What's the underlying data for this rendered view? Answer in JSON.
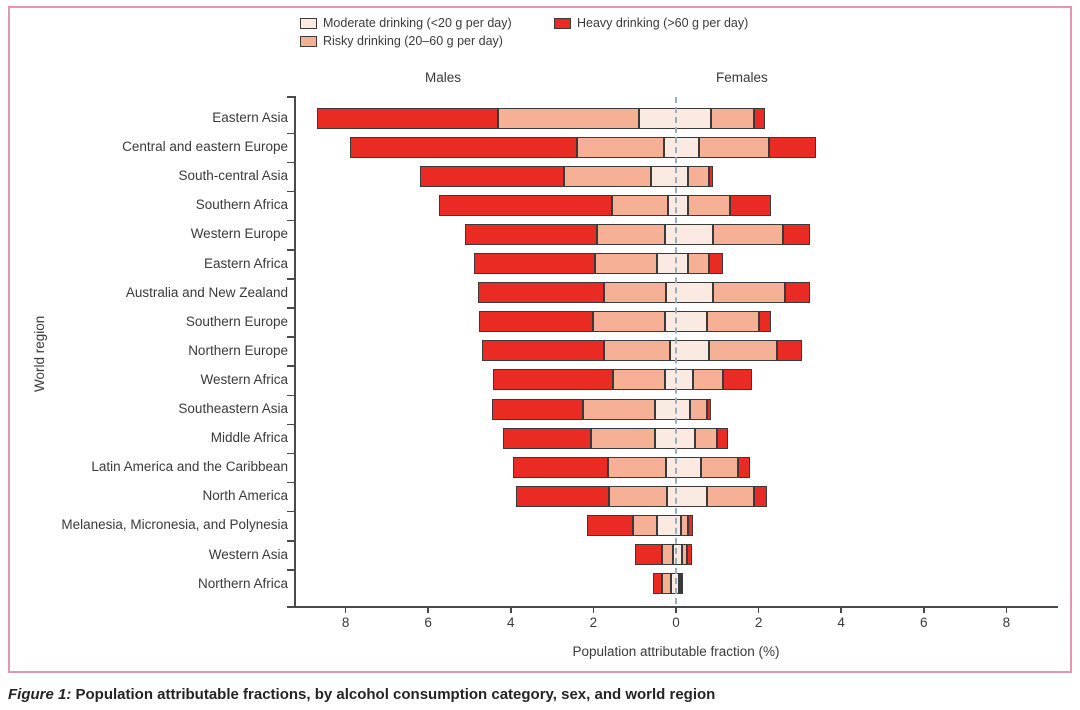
{
  "figure": {
    "caption_label": "Figure 1:",
    "caption_text": "Population attributable fractions, by alcohol consumption category, sex, and world region"
  },
  "chart_data": {
    "type": "bar",
    "variant": "diverging-stacked-horizontal",
    "title": "",
    "xlabel": "Population attributable fraction (%)",
    "ylabel": "World region",
    "side_labels": {
      "left": "Males",
      "right": "Females"
    },
    "legend_position": "top-center",
    "grid": false,
    "xlim": [
      -9.2,
      9.3
    ],
    "x_tick_values": [
      -8,
      -6,
      -4,
      -2,
      0,
      2,
      4,
      6,
      8
    ],
    "x_tick_labels": [
      "8",
      "6",
      "4",
      "2",
      "0",
      "2",
      "4",
      "6",
      "8"
    ],
    "legend": [
      {
        "label": "Moderate drinking (<20 g per day)",
        "color": "#fbeae1"
      },
      {
        "label": "Risky drinking (20–60 g per day)",
        "color": "#f5b095"
      },
      {
        "label": "Heavy drinking (>60 g per day)",
        "color": "#ea2b23"
      }
    ],
    "categories": [
      "Eastern Asia",
      "Central and eastern Europe",
      "South-central Asia",
      "Southern Africa",
      "Western Europe",
      "Eastern Africa",
      "Australia and New Zealand",
      "Southern Europe",
      "Northern Europe",
      "Western Africa",
      "Southeastern Asia",
      "Middle Africa",
      "Latin America and the Caribbean",
      "North America",
      "Melanesia, Micronesia, and Polynesia",
      "Western Asia",
      "Northern Africa"
    ],
    "males": {
      "moderate": [
        0.9,
        0.3,
        0.6,
        0.2,
        0.27,
        0.45,
        0.25,
        0.27,
        0.15,
        0.27,
        0.5,
        0.5,
        0.25,
        0.22,
        0.45,
        0.07,
        0.12
      ],
      "risky": [
        3.4,
        2.1,
        2.1,
        1.35,
        1.64,
        1.5,
        1.5,
        1.75,
        1.6,
        1.25,
        1.75,
        1.55,
        1.4,
        1.4,
        0.6,
        0.27,
        0.22
      ],
      "heavy": [
        4.4,
        5.5,
        3.5,
        4.2,
        3.2,
        2.95,
        3.05,
        2.75,
        2.95,
        2.9,
        2.2,
        2.15,
        2.3,
        2.25,
        1.1,
        0.65,
        0.22
      ]
    },
    "females": {
      "moderate": [
        0.85,
        0.55,
        0.3,
        0.3,
        0.9,
        0.3,
        0.9,
        0.75,
        0.8,
        0.4,
        0.35,
        0.45,
        0.6,
        0.75,
        0.12,
        0.15,
        0.08
      ],
      "risky": [
        1.05,
        1.7,
        0.5,
        1.0,
        1.7,
        0.5,
        1.75,
        1.25,
        1.65,
        0.75,
        0.4,
        0.55,
        0.9,
        1.15,
        0.18,
        0.12,
        0.04
      ],
      "heavy": [
        0.25,
        1.15,
        0.1,
        1.0,
        0.65,
        0.35,
        0.6,
        0.3,
        0.6,
        0.7,
        0.1,
        0.25,
        0.3,
        0.3,
        0.1,
        0.12,
        0.03
      ]
    }
  }
}
